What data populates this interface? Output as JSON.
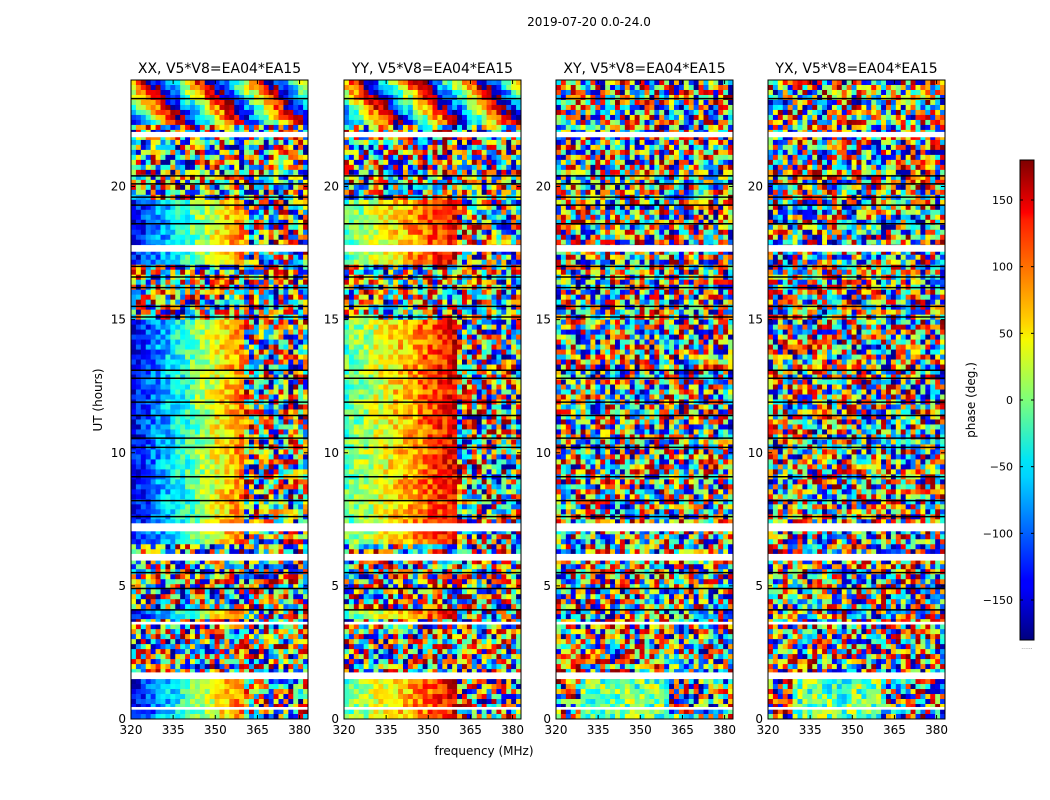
{
  "figure": {
    "suptitle": "2019-07-20 0.0-24.0",
    "xlabel": "frequency (MHz)",
    "ylabel": "UT (hours)"
  },
  "colorbar": {
    "label": "phase (deg.)",
    "range": [
      -180,
      180
    ],
    "ticks": [
      "150",
      "100",
      "50",
      "0",
      "−50",
      "−100",
      "−150"
    ],
    "tick_values": [
      150,
      100,
      50,
      0,
      -50,
      -100,
      -150
    ],
    "footnote": "......"
  },
  "chart_data": [
    {
      "type": "heatmap",
      "title": "XX, V5*V8=EA04*EA15",
      "x_ticks": [
        "320",
        "335",
        "350",
        "365",
        "380"
      ],
      "x_tick_values": [
        320,
        335,
        350,
        365,
        380
      ],
      "xlim": [
        320,
        383
      ],
      "y_ticks": [
        "0",
        "5",
        "10",
        "15",
        "20"
      ],
      "y_tick_values": [
        0,
        5,
        10,
        15,
        20
      ],
      "ylim": [
        0,
        24
      ],
      "z_label": "phase (deg.)",
      "z_range": [
        -180,
        180
      ],
      "pattern": "coherent"
    },
    {
      "type": "heatmap",
      "title": "YY, V5*V8=EA04*EA15",
      "x_ticks": [
        "320",
        "335",
        "350",
        "365",
        "380"
      ],
      "x_tick_values": [
        320,
        335,
        350,
        365,
        380
      ],
      "xlim": [
        320,
        383
      ],
      "y_ticks": [
        "0",
        "5",
        "10",
        "15",
        "20"
      ],
      "y_tick_values": [
        0,
        5,
        10,
        15,
        20
      ],
      "ylim": [
        0,
        24
      ],
      "z_label": "phase (deg.)",
      "z_range": [
        -180,
        180
      ],
      "pattern": "coherent"
    },
    {
      "type": "heatmap",
      "title": "XY, V5*V8=EA04*EA15",
      "x_ticks": [
        "320",
        "335",
        "350",
        "365",
        "380"
      ],
      "x_tick_values": [
        320,
        335,
        350,
        365,
        380
      ],
      "xlim": [
        320,
        383
      ],
      "y_ticks": [
        "0",
        "5",
        "10",
        "15",
        "20"
      ],
      "y_tick_values": [
        0,
        5,
        10,
        15,
        20
      ],
      "ylim": [
        0,
        24
      ],
      "z_label": "phase (deg.)",
      "z_range": [
        -180,
        180
      ],
      "pattern": "noise"
    },
    {
      "type": "heatmap",
      "title": "YX, V5*V8=EA04*EA15",
      "x_ticks": [
        "320",
        "335",
        "350",
        "365",
        "380"
      ],
      "x_tick_values": [
        320,
        335,
        350,
        365,
        380
      ],
      "xlim": [
        320,
        383
      ],
      "y_ticks": [
        "0",
        "5",
        "10",
        "15",
        "20"
      ],
      "y_tick_values": [
        0,
        5,
        10,
        15,
        20
      ],
      "ylim": [
        0,
        24
      ],
      "z_label": "phase (deg.)",
      "z_range": [
        -180,
        180
      ],
      "pattern": "noise"
    }
  ]
}
